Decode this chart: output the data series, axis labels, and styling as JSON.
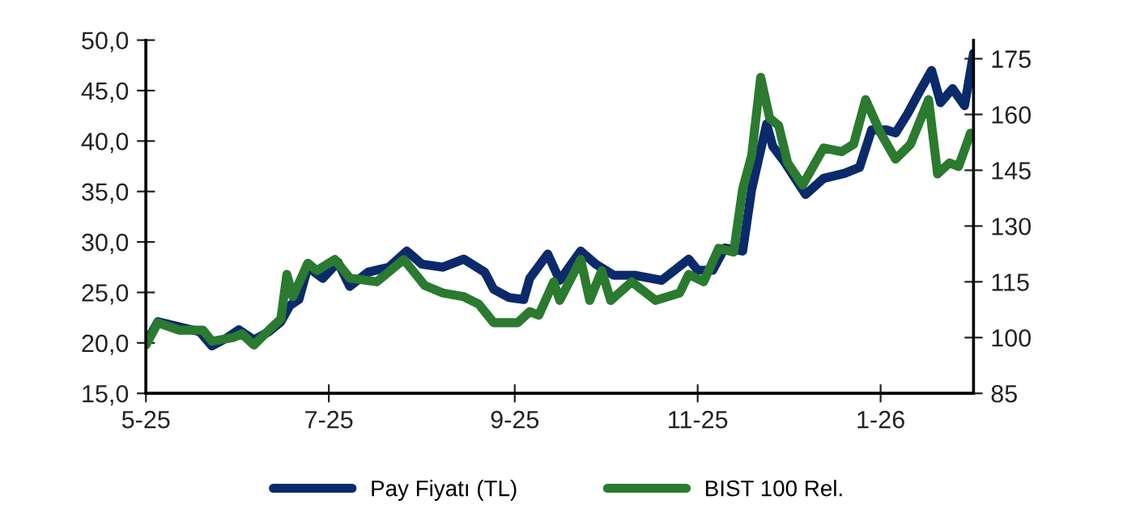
{
  "chart_data": {
    "type": "line",
    "x": [
      "2025-05-01",
      "2025-05-05",
      "2025-05-12",
      "2025-05-19",
      "2025-05-23",
      "2025-05-28",
      "2025-06-01",
      "2025-06-06",
      "2025-06-11",
      "2025-06-15",
      "2025-06-18",
      "2025-06-21",
      "2025-06-24",
      "2025-06-29",
      "2025-07-04",
      "2025-07-08",
      "2025-07-14",
      "2025-07-21",
      "2025-07-27",
      "2025-08-01",
      "2025-08-08",
      "2025-08-15",
      "2025-08-22",
      "2025-08-25",
      "2025-08-30",
      "2025-09-04",
      "2025-09-06",
      "2025-09-12",
      "2025-09-16",
      "2025-09-23",
      "2025-09-28",
      "2025-10-04",
      "2025-10-11",
      "2025-10-20",
      "2025-10-29",
      "2025-11-01",
      "2025-11-06",
      "2025-11-10",
      "2025-11-16",
      "2025-11-19",
      "2025-11-24",
      "2025-11-26",
      "2025-11-30",
      "2025-12-07",
      "2025-12-13",
      "2025-12-20",
      "2025-12-25",
      "2025-12-29",
      "2026-01-03",
      "2026-01-06",
      "2026-01-10",
      "2026-01-14",
      "2026-01-18",
      "2026-01-21",
      "2026-01-25",
      "2026-01-29",
      "2026-02-01"
    ],
    "series": [
      {
        "name": "Pay Fiyatı (TL)",
        "color": "#0b2a6b",
        "values": [
          20.0,
          22.1,
          21.6,
          21.1,
          19.7,
          20.5,
          21.3,
          20.3,
          21.1,
          22.1,
          23.7,
          24.3,
          27.5,
          26.4,
          28.0,
          25.6,
          27.0,
          27.5,
          29.1,
          27.8,
          27.5,
          28.3,
          27.0,
          25.3,
          24.5,
          24.3,
          26.4,
          28.8,
          26.2,
          29.1,
          27.8,
          26.7,
          26.7,
          26.2,
          28.3,
          27.2,
          27.2,
          29.4,
          29.1,
          35.2,
          41.7,
          39.5,
          37.9,
          34.7,
          36.3,
          36.8,
          37.4,
          41.1,
          41.1,
          40.8,
          42.7,
          44.9,
          47.0,
          43.8,
          45.2,
          43.5,
          48.7
        ]
      },
      {
        "name": "BIST 100 Rel.",
        "color": "#2a7a2f",
        "axis": "y2",
        "x": [
          "2025-05-01",
          "2025-05-05",
          "2025-05-12",
          "2025-05-20",
          "2025-05-23",
          "2025-05-30",
          "2025-06-02",
          "2025-06-06",
          "2025-06-11",
          "2025-06-15",
          "2025-06-17",
          "2025-06-19",
          "2025-06-24",
          "2025-06-27",
          "2025-07-03",
          "2025-07-08",
          "2025-07-17",
          "2025-07-26",
          "2025-08-02",
          "2025-08-08",
          "2025-08-15",
          "2025-08-20",
          "2025-08-25",
          "2025-09-02",
          "2025-09-06",
          "2025-09-09",
          "2025-09-14",
          "2025-09-16",
          "2025-09-23",
          "2025-09-26",
          "2025-09-30",
          "2025-10-03",
          "2025-10-10",
          "2025-10-18",
          "2025-10-26",
          "2025-10-29",
          "2025-11-03",
          "2025-11-08",
          "2025-11-13",
          "2025-11-16",
          "2025-11-19",
          "2025-11-22",
          "2025-11-25",
          "2025-11-28",
          "2025-12-01",
          "2025-12-06",
          "2025-12-13",
          "2025-12-19",
          "2025-12-23",
          "2025-12-27",
          "2026-01-01",
          "2026-01-06",
          "2026-01-11",
          "2026-01-17",
          "2026-01-20",
          "2026-01-24",
          "2026-01-27",
          "2026-01-31"
        ],
        "values": [
          98,
          104,
          102,
          102,
          99,
          100,
          101,
          98,
          102,
          105,
          117,
          111,
          120,
          118,
          121,
          116,
          115,
          121,
          114,
          112,
          111,
          109,
          104,
          104,
          107,
          106,
          115,
          110,
          121,
          110,
          118,
          110,
          115,
          110,
          112,
          117,
          115,
          124,
          123,
          140,
          149,
          170,
          159,
          157,
          147,
          141,
          151,
          150,
          152,
          164,
          155,
          148,
          152,
          164,
          144,
          147,
          146,
          155
        ]
      }
    ],
    "xlim": [
      "2025-05-01",
      "2026-02-01"
    ],
    "xticks": [
      {
        "value": "2025-05-01",
        "label": "5-25"
      },
      {
        "value": "2025-07-01",
        "label": "7-25"
      },
      {
        "value": "2025-09-01",
        "label": "9-25"
      },
      {
        "value": "2025-11-01",
        "label": "11-25"
      },
      {
        "value": "2026-01-01",
        "label": "1-26"
      }
    ],
    "ylim": [
      15,
      50
    ],
    "yticks": [
      {
        "value": 15,
        "label": "15,0"
      },
      {
        "value": 20,
        "label": "20,0"
      },
      {
        "value": 25,
        "label": "25,0"
      },
      {
        "value": 30,
        "label": "30,0"
      },
      {
        "value": 35,
        "label": "35,0"
      },
      {
        "value": 40,
        "label": "40,0"
      },
      {
        "value": 45,
        "label": "45,0"
      },
      {
        "value": 50,
        "label": "50,0"
      }
    ],
    "y2lim": [
      85,
      180
    ],
    "y2ticks": [
      85,
      100,
      115,
      130,
      145,
      160,
      175
    ],
    "legend": "bottom",
    "grid": false,
    "marker": "none",
    "line_style": "solid"
  }
}
